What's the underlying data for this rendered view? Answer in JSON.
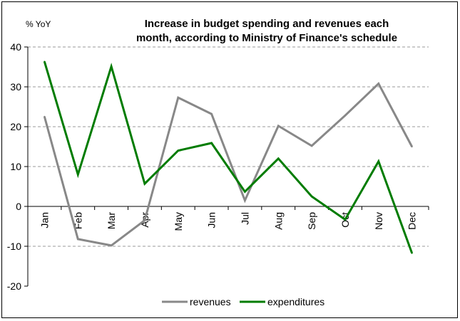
{
  "chart_data": {
    "type": "line",
    "title_lines": [
      "Increase in budget spending and revenues each",
      "month, according to Ministry of Finance's schedule"
    ],
    "unit_label": "% YoY",
    "categories": [
      "Jan",
      "Feb",
      "Mar",
      "Apr",
      "May",
      "Jun",
      "Jul",
      "Aug",
      "Sep",
      "Oct",
      "Nov",
      "Dec"
    ],
    "series": [
      {
        "name": "revenues",
        "color": "#888888",
        "values": [
          22.5,
          -8.2,
          -9.8,
          -3.5,
          27.3,
          23.2,
          1.5,
          20.2,
          15.2,
          22.8,
          30.8,
          15.0
        ]
      },
      {
        "name": "expenditures",
        "color": "#007c00",
        "values": [
          36.3,
          8.0,
          35.1,
          5.7,
          14.0,
          15.9,
          3.7,
          12.0,
          2.5,
          -3.3,
          11.3,
          -11.7
        ]
      }
    ],
    "ylim": [
      -20,
      40
    ],
    "yticks": [
      -20,
      -10,
      0,
      10,
      20,
      30,
      40
    ],
    "grid": true,
    "legend_position": "bottom"
  }
}
